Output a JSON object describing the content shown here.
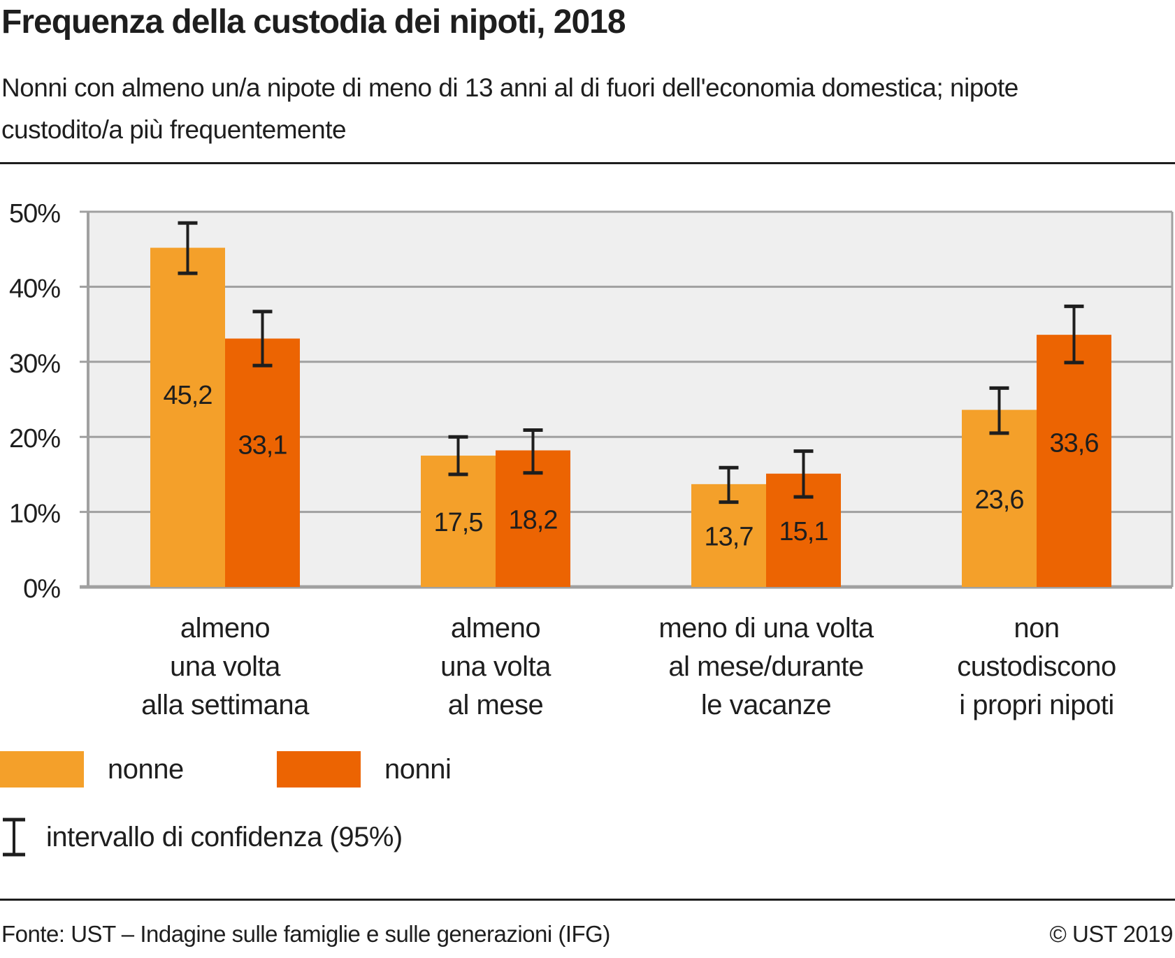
{
  "header": {
    "title": "Frequenza della custodia dei nipoti, 2018",
    "subtitle": "Nonni con almeno un/a nipote di meno di 13 anni al di fuori dell'economia domestica; nipote custodito/a più frequentemente"
  },
  "chart_data": {
    "type": "bar",
    "title": "Frequenza della custodia dei nipoti, 2018",
    "subtitle": "Nonni con almeno un/a nipote di meno di 13 anni al di fuori dell'economia domestica; nipote custodito/a più frequentemente",
    "xlabel": "",
    "ylabel": "",
    "ylim": [
      0,
      50
    ],
    "yticks": [
      0,
      10,
      20,
      30,
      40,
      50
    ],
    "ytick_labels": [
      "0%",
      "10%",
      "20%",
      "30%",
      "40%",
      "50%"
    ],
    "grid": true,
    "categories": [
      [
        "almeno",
        "una volta",
        "alla settimana"
      ],
      [
        "almeno",
        "una volta",
        "al mese"
      ],
      [
        "meno di una volta",
        "al mese/durante",
        "le vacanze"
      ],
      [
        "non",
        "custodiscono",
        "i propri nipoti"
      ]
    ],
    "series": [
      {
        "name": "nonne",
        "color": "#F4A02A",
        "values": [
          45.2,
          17.5,
          13.7,
          23.6
        ],
        "labels": [
          "45,2",
          "17,5",
          "13,7",
          "23,6"
        ],
        "ci_low": [
          41.8,
          15.0,
          11.3,
          20.5
        ],
        "ci_high": [
          48.5,
          20.0,
          15.9,
          26.5
        ]
      },
      {
        "name": "nonni",
        "color": "#EC6402",
        "values": [
          33.1,
          18.2,
          15.1,
          33.6
        ],
        "labels": [
          "33,1",
          "18,2",
          "15,1",
          "33,6"
        ],
        "ci_low": [
          29.5,
          15.2,
          12.0,
          29.9
        ],
        "ci_high": [
          36.7,
          20.9,
          18.1,
          37.4
        ]
      }
    ],
    "legend": {
      "placement": "bottom-left",
      "items": [
        {
          "label": "nonne",
          "color": "#F4A02A"
        },
        {
          "label": "nonni",
          "color": "#EC6402"
        }
      ],
      "ci_label": "intervallo di confidenza (95%)"
    }
  },
  "legend": {
    "nonne": "nonne",
    "nonni": "nonni",
    "ci": "intervallo di confidenza (95%)",
    "nonne_color": "#F4A02A",
    "nonni_color": "#EC6402"
  },
  "footer": {
    "source": "Fonte: UST – Indagine sulle famiglie e sulle generazioni (IFG)",
    "copyright": "© UST 2019"
  }
}
